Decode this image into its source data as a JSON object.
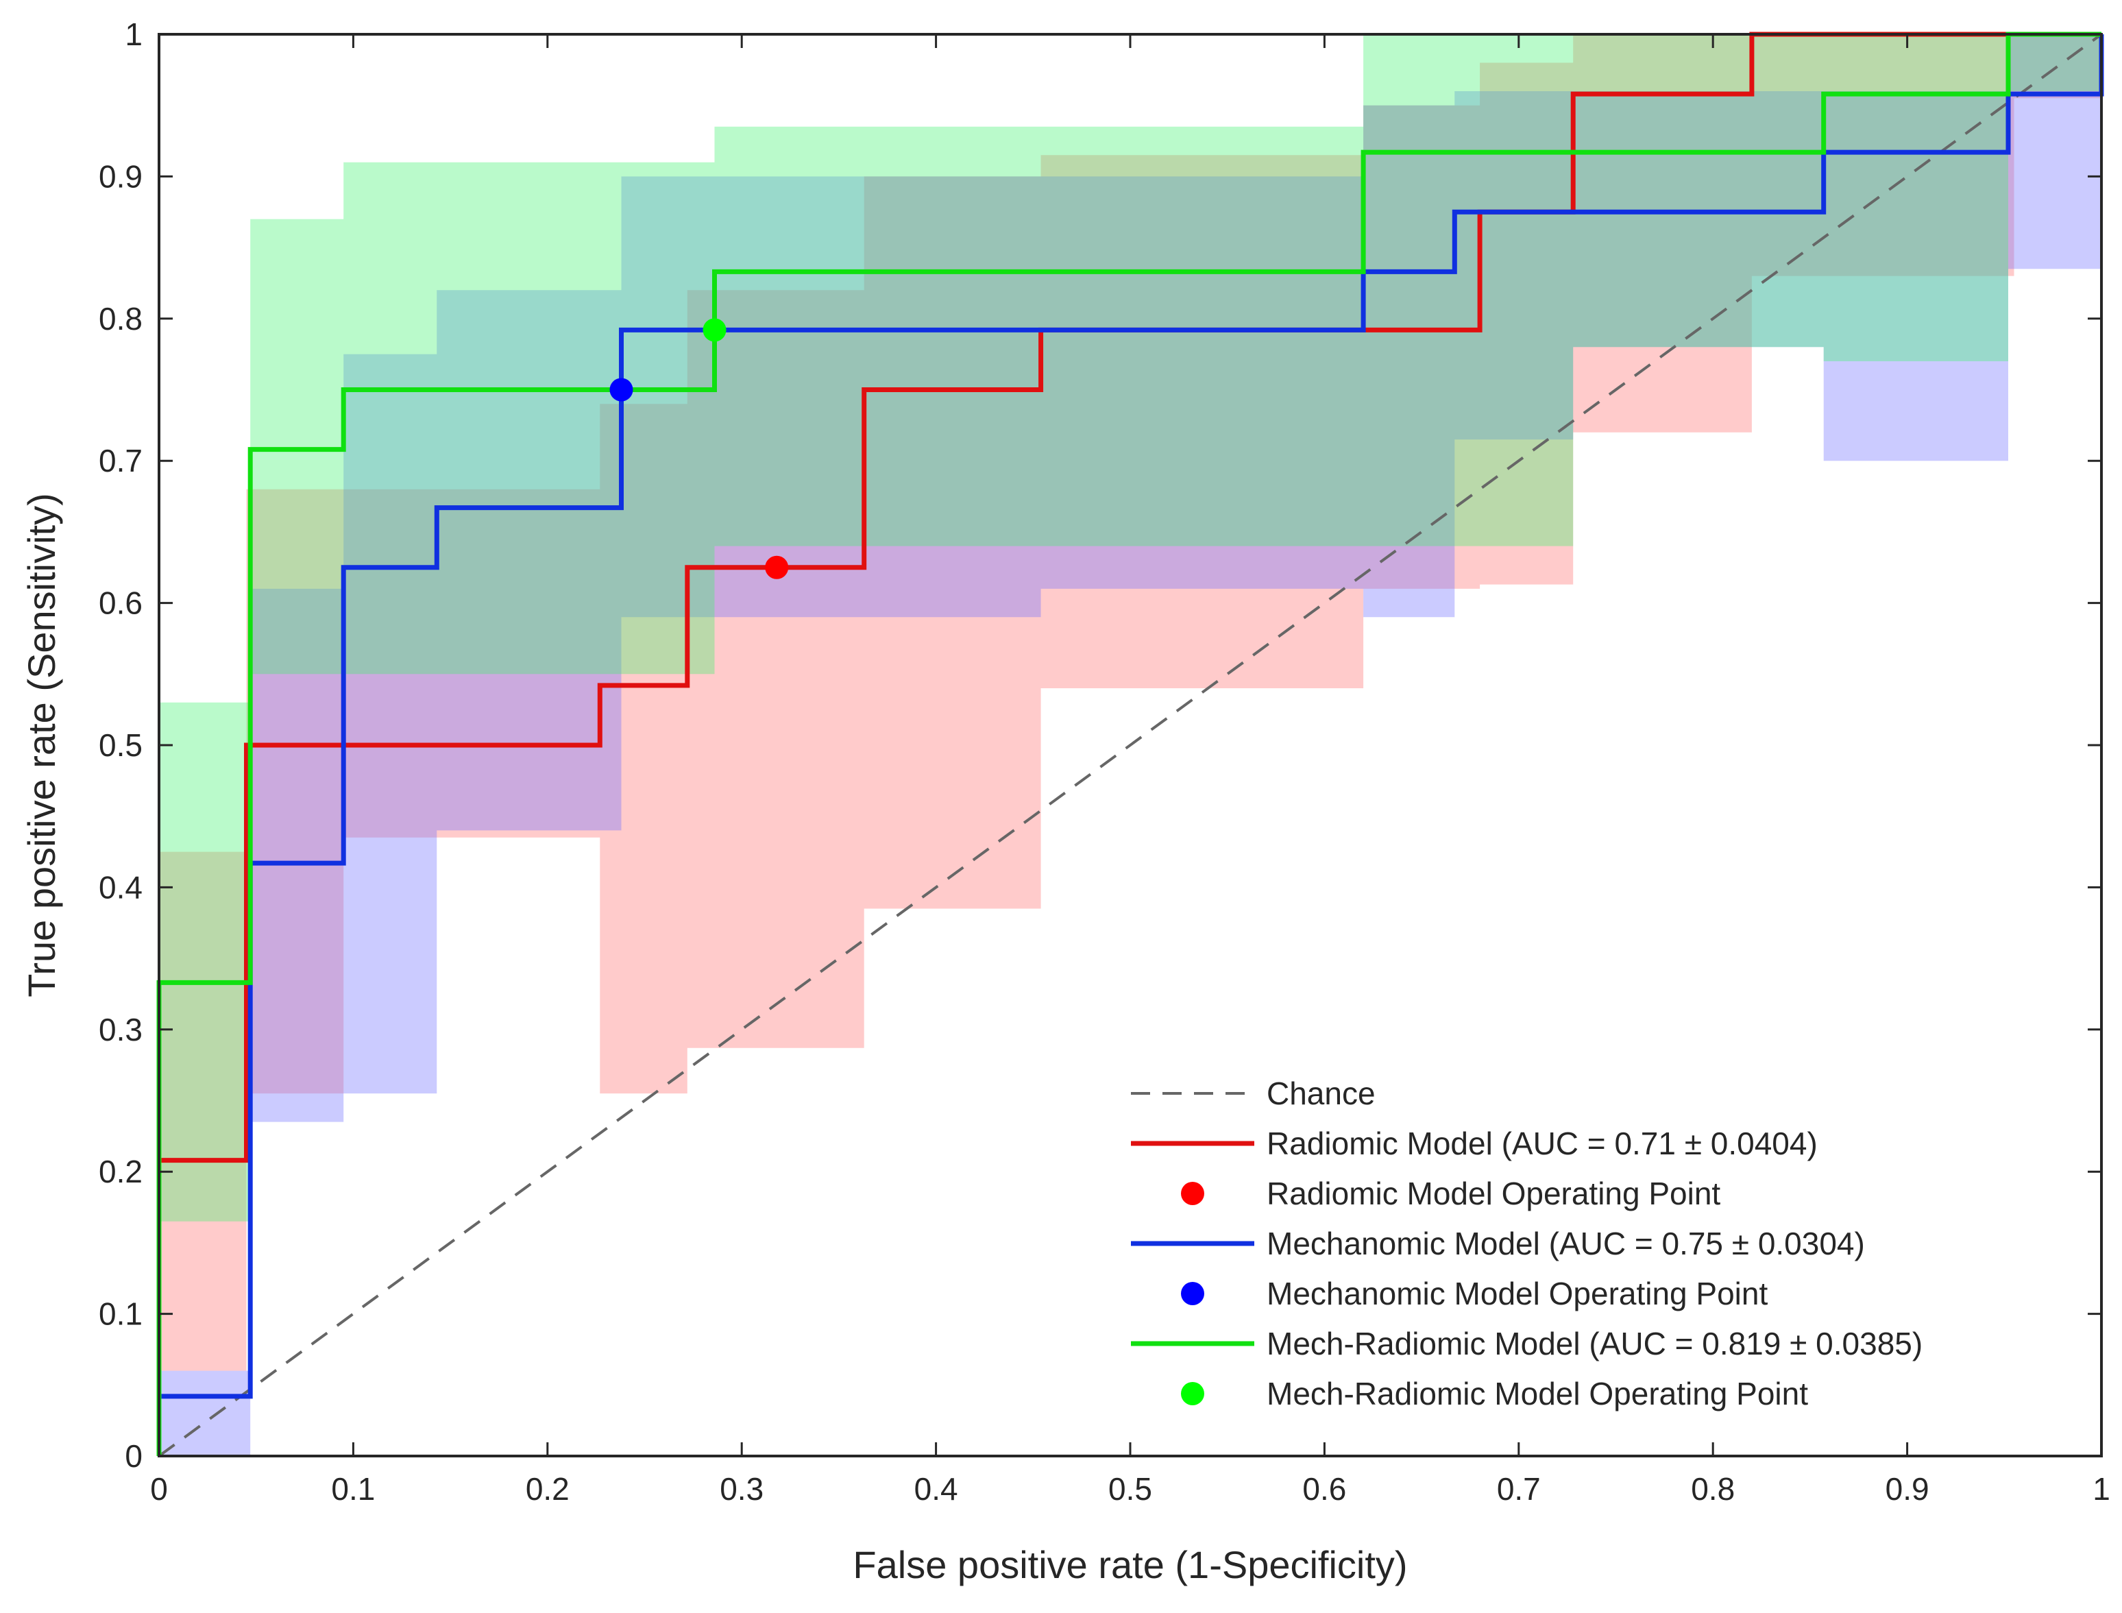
{
  "chart_data": {
    "type": "line",
    "title": "",
    "xlabel": "False positive rate (1-Specificity)",
    "ylabel": "True positive rate (Sensitivity)",
    "xlim": [
      0,
      1
    ],
    "ylim": [
      0,
      1
    ],
    "xticks": [
      0,
      0.1,
      0.2,
      0.3,
      0.4,
      0.5,
      0.6,
      0.7,
      0.8,
      0.9,
      1
    ],
    "yticks": [
      0,
      0.1,
      0.2,
      0.3,
      0.4,
      0.5,
      0.6,
      0.7,
      0.8,
      0.9,
      1
    ],
    "xtick_labels": [
      "0",
      "0.1",
      "0.2",
      "0.3",
      "0.4",
      "0.5",
      "0.6",
      "0.7",
      "0.8",
      "0.9",
      "1"
    ],
    "ytick_labels": [
      "0",
      "0.1",
      "0.2",
      "0.3",
      "0.4",
      "0.5",
      "0.6",
      "0.7",
      "0.8",
      "0.9",
      "1"
    ],
    "grid": false,
    "legend_position": "bottom-right",
    "chance": {
      "name": "Chance",
      "color": "#666666",
      "x": [
        0,
        1
      ],
      "y": [
        0,
        1
      ]
    },
    "series": [
      {
        "name": "Radiomic Model",
        "legend_label": "Radiomic Model (AUC = 0.71 ± 0.0404)",
        "operating_label": "Radiomic Model Operating Point",
        "auc": 0.71,
        "auc_std": 0.0404,
        "color": "#ff0000",
        "line_color": "#e01010",
        "band_color": "#ff7070",
        "x": [
          0,
          0,
          0.045,
          0.045,
          0.227,
          0.227,
          0.272,
          0.272,
          0.363,
          0.363,
          0.454,
          0.454,
          0.62,
          0.62,
          0.68,
          0.68,
          0.728,
          0.728,
          0.82,
          0.82,
          0.955,
          0.955,
          1
        ],
        "y": [
          0,
          0.208,
          0.208,
          0.5,
          0.5,
          0.542,
          0.542,
          0.625,
          0.625,
          0.75,
          0.75,
          0.792,
          0.792,
          0.792,
          0.792,
          0.875,
          0.875,
          0.958,
          0.958,
          1,
          1,
          1,
          1
        ],
        "band_x": [
          0,
          0.045,
          0.095,
          0.227,
          0.272,
          0.363,
          0.454,
          0.62,
          0.68,
          0.728,
          0.82,
          0.955,
          1
        ],
        "band_upper": [
          0.425,
          0.68,
          0.68,
          0.74,
          0.82,
          0.9,
          0.915,
          0.95,
          0.98,
          1,
          1,
          1,
          1
        ],
        "band_lower": [
          0.06,
          0.255,
          0.435,
          0.255,
          0.287,
          0.385,
          0.54,
          0.61,
          0.613,
          0.72,
          0.83,
          0.955,
          0.955
        ],
        "operating_point": [
          0.318,
          0.625
        ]
      },
      {
        "name": "Mechanomic Model",
        "legend_label": "Mechanomic Model (AUC = 0.75 ± 0.0304)",
        "operating_label": "Mechanomic Model Operating Point",
        "auc": 0.75,
        "auc_std": 0.0304,
        "color": "#0000ff",
        "line_color": "#1030e0",
        "band_color": "#7070ff",
        "x": [
          0,
          0,
          0.047,
          0.047,
          0.095,
          0.095,
          0.143,
          0.143,
          0.238,
          0.238,
          0.62,
          0.62,
          0.667,
          0.667,
          0.857,
          0.857,
          0.952,
          0.952,
          1,
          1
        ],
        "y": [
          0,
          0.042,
          0.042,
          0.417,
          0.417,
          0.625,
          0.625,
          0.667,
          0.667,
          0.792,
          0.792,
          0.833,
          0.833,
          0.875,
          0.875,
          0.917,
          0.917,
          0.958,
          0.958,
          1
        ],
        "band_x": [
          0,
          0.047,
          0.095,
          0.143,
          0.238,
          0.363,
          0.454,
          0.62,
          0.667,
          0.728,
          0.857,
          0.952,
          1
        ],
        "band_upper": [
          0.06,
          0.61,
          0.775,
          0.82,
          0.9,
          0.9,
          0.9,
          0.95,
          0.96,
          0.96,
          0.96,
          1,
          1
        ],
        "band_lower": [
          0,
          0.235,
          0.255,
          0.44,
          0.59,
          0.59,
          0.61,
          0.59,
          0.715,
          0.78,
          0.7,
          0.835,
          0.835
        ],
        "operating_point": [
          0.238,
          0.75
        ]
      },
      {
        "name": "Mech-Radiomic Model",
        "legend_label": "Mech-Radiomic Model (AUC = 0.819 ± 0.0385)",
        "operating_label": "Mech-Radiomic Model Operating Point",
        "auc": 0.819,
        "auc_std": 0.0385,
        "color": "#00ff00",
        "line_color": "#10e010",
        "band_color": "#40f070",
        "x": [
          0,
          0,
          0.047,
          0.047,
          0.095,
          0.095,
          0.286,
          0.286,
          0.62,
          0.62,
          0.857,
          0.857,
          0.952,
          0.952,
          1
        ],
        "y": [
          0,
          0.333,
          0.333,
          0.708,
          0.708,
          0.75,
          0.75,
          0.833,
          0.833,
          0.917,
          0.917,
          0.958,
          0.958,
          1,
          1
        ],
        "band_x": [
          0,
          0.047,
          0.095,
          0.143,
          0.238,
          0.286,
          0.363,
          0.454,
          0.62,
          0.667,
          0.728,
          0.857,
          0.952,
          1
        ],
        "band_upper": [
          0.53,
          0.87,
          0.91,
          0.91,
          0.91,
          0.935,
          0.935,
          0.935,
          1,
          1,
          1,
          1,
          1,
          1
        ],
        "band_lower": [
          0.165,
          0.55,
          0.55,
          0.55,
          0.55,
          0.64,
          0.64,
          0.64,
          0.64,
          0.64,
          0.78,
          0.77,
          0.96,
          0.96
        ],
        "operating_point": [
          0.286,
          0.792
        ]
      }
    ],
    "legend": [
      {
        "label": "Chance",
        "kind": "dashed",
        "color": "#666666"
      },
      {
        "label": "Radiomic Model (AUC = 0.71 ± 0.0404)",
        "kind": "line",
        "color": "#e01010"
      },
      {
        "label": "Radiomic Model Operating Point",
        "kind": "dot",
        "color": "#ff0000"
      },
      {
        "label": "Mechanomic Model (AUC = 0.75 ± 0.0304)",
        "kind": "line",
        "color": "#1030e0"
      },
      {
        "label": "Mechanomic Model Operating Point",
        "kind": "dot",
        "color": "#0000ff"
      },
      {
        "label": "Mech-Radiomic Model (AUC = 0.819 ± 0.0385)",
        "kind": "line",
        "color": "#10e010"
      },
      {
        "label": "Mech-Radiomic Model Operating Point",
        "kind": "dot",
        "color": "#00ff00"
      }
    ]
  }
}
